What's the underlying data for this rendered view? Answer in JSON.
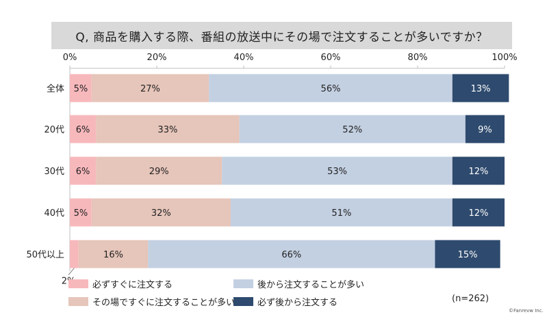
{
  "chart_data": {
    "type": "bar",
    "orientation": "horizontal",
    "stacked": true,
    "title": "Q, 商品を購入する際、番組の放送中にその場で注文することが多いですか？",
    "categories": [
      "全体",
      "20代",
      "30代",
      "40代",
      "50代以上"
    ],
    "xlim": [
      0,
      100
    ],
    "x_ticks": [
      "0%",
      "20%",
      "40%",
      "60%",
      "80%",
      "100%"
    ],
    "gridlines": false,
    "legend_position": "bottom",
    "series": [
      {
        "name": "必ずすぐに注文する",
        "color": "#f7b8bc",
        "values": [
          5,
          6,
          6,
          5,
          2
        ],
        "labels": [
          "5%",
          "6%",
          "6%",
          "5%",
          "2%"
        ]
      },
      {
        "name": "その場ですぐに注文することが多い",
        "color": "#e6c5ba",
        "values": [
          27,
          33,
          29,
          32,
          16
        ],
        "labels": [
          "27%",
          "33%",
          "29%",
          "32%",
          "16%"
        ]
      },
      {
        "name": "後から注文することが多い",
        "color": "#c3d0e2",
        "values": [
          56,
          52,
          53,
          51,
          66
        ],
        "labels": [
          "56%",
          "52%",
          "53%",
          "51%",
          "66%"
        ]
      },
      {
        "name": "必ず後から注文する",
        "color": "#2e4a6e",
        "values": [
          13,
          9,
          12,
          12,
          15
        ],
        "labels": [
          "13%",
          "9%",
          "12%",
          "12%",
          "15%"
        ]
      }
    ],
    "note": "(n=262)",
    "credit": "©Fanrevw Inc."
  }
}
